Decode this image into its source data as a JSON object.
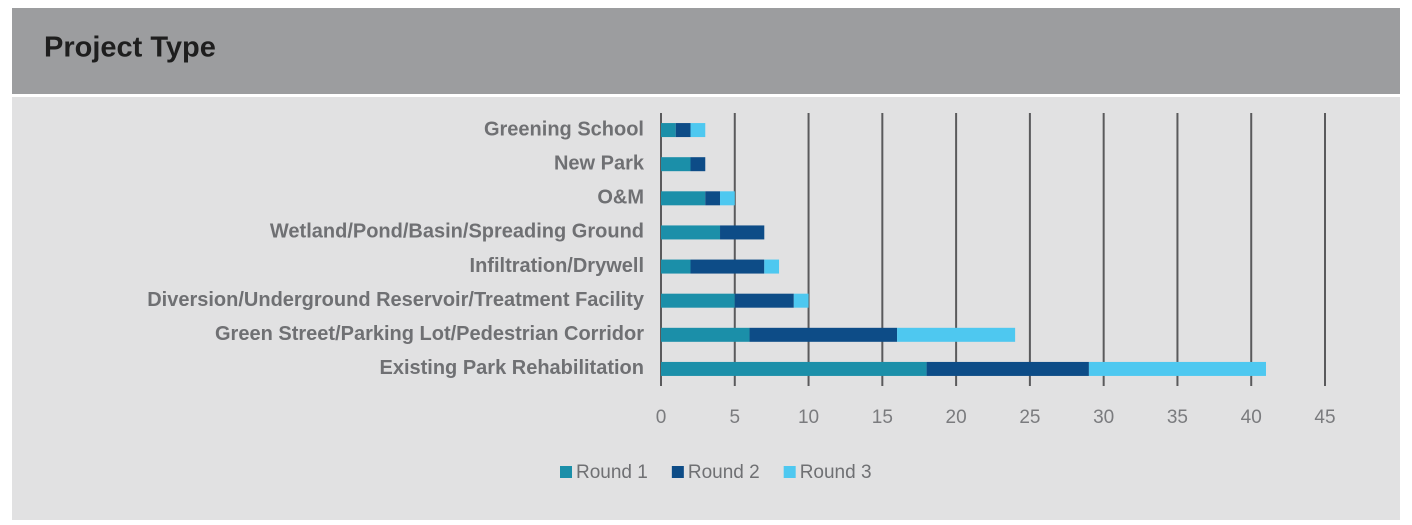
{
  "chart_data": {
    "type": "stacked_barh",
    "title": "Project Type",
    "categories": [
      "Greening School",
      "New Park",
      "O&M",
      "Wetland/Pond/Basin/Spreading Ground",
      "Infiltration/Drywell",
      "Diversion/Underground Reservoir/Treatment Facility",
      "Green Street/Parking Lot/Pedestrian Corridor",
      "Existing Park Rehabilitation"
    ],
    "series": [
      {
        "name": "Round 1",
        "color": "#1b8fa9",
        "values": [
          1,
          2,
          3,
          4,
          2,
          5,
          6,
          18
        ]
      },
      {
        "name": "Round 2",
        "color": "#0d4c87",
        "values": [
          1,
          1,
          1,
          3,
          5,
          4,
          10,
          11
        ]
      },
      {
        "name": "Round 3",
        "color": "#4ec8f0",
        "values": [
          1,
          0,
          1,
          0,
          1,
          1,
          8,
          12
        ]
      }
    ],
    "xlim": [
      0,
      45
    ],
    "xticks": [
      0,
      5,
      10,
      15,
      20,
      25,
      30,
      35,
      40,
      45
    ],
    "grid": true,
    "legend": "bottom"
  }
}
